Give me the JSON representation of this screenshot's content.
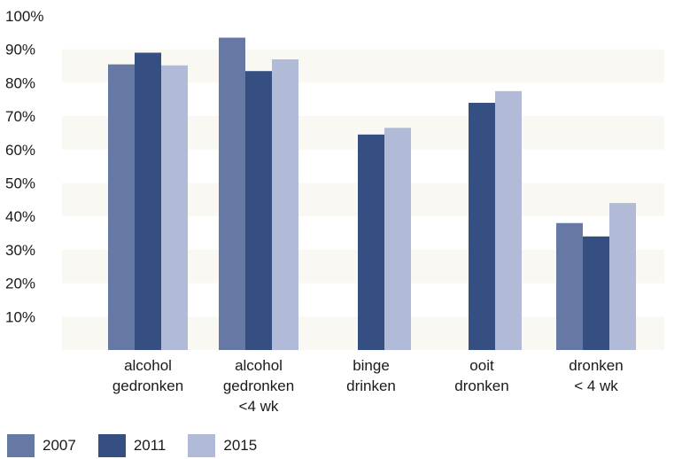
{
  "chart_data": {
    "type": "bar",
    "categories": [
      [
        "alcohol",
        "gedronken"
      ],
      [
        "alcohol",
        "gedronken",
        "<4 wk"
      ],
      [
        "binge",
        "drinken"
      ],
      [
        "ooit",
        "dronken"
      ],
      [
        "dronken",
        "< 4 wk"
      ]
    ],
    "y_ticks": [
      "10%",
      "20%",
      "30%",
      "40%",
      "50%",
      "60%",
      "70%",
      "80%",
      "90%",
      "100%"
    ],
    "ylim": [
      0,
      100
    ],
    "grid": false,
    "legend_position": "bottom-left",
    "series": [
      {
        "name": "2007",
        "color": "#6679a5",
        "values": [
          85.5,
          93.5,
          null,
          null,
          38
        ]
      },
      {
        "name": "2011",
        "color": "#364f83",
        "values": [
          89,
          83.5,
          64.5,
          74,
          34
        ]
      },
      {
        "name": "2015",
        "color": "#b1bad6",
        "values": [
          85.2,
          87,
          66.5,
          77.5,
          44
        ]
      }
    ],
    "background_band_color": "#faf8f3"
  }
}
